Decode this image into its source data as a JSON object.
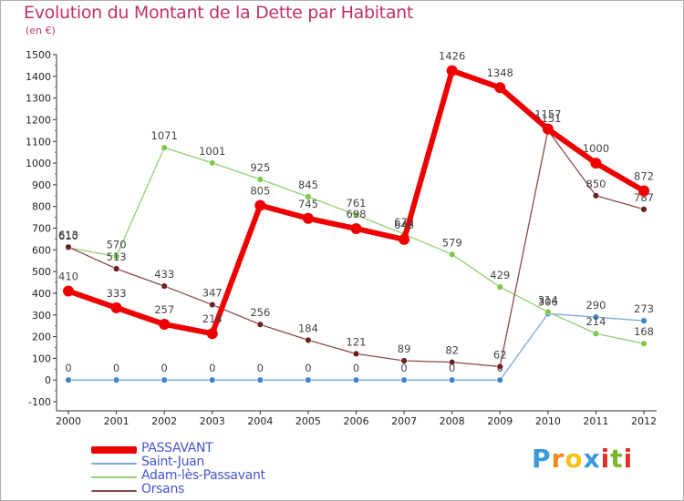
{
  "header": {
    "title": "Evolution du Montant de la Dette par Habitant",
    "subtitle": "(en €)"
  },
  "logo": {
    "text": "Proxiti",
    "colors": [
      "#3a9ad9",
      "#f08a1c",
      "#f3c318",
      "#3a9ad9",
      "#e0302a",
      "#78b82a",
      "#e0302a"
    ]
  },
  "chart_data": {
    "type": "line",
    "title": "Evolution du Montant de la Dette par Habitant",
    "ylabel": "(en €)",
    "xlabel": "",
    "x": [
      "2000",
      "2001",
      "2002",
      "2003",
      "2004",
      "2005",
      "2006",
      "2007",
      "2008",
      "2009",
      "2010",
      "2011",
      "2012"
    ],
    "y_ticks": [
      "-100",
      "0",
      "100",
      "200",
      "300",
      "400",
      "500",
      "600",
      "700",
      "800",
      "900",
      "1000",
      "1100",
      "1200",
      "1300",
      "1400",
      "1500"
    ],
    "ylim": [
      -100,
      1500
    ],
    "grid": false,
    "legend_position": "bottom-left",
    "series": [
      {
        "name": "PASSAVANT",
        "color": "#ee0000",
        "marker": "#ee0000",
        "width": 6,
        "values": [
          410,
          333,
          257,
          214,
          805,
          745,
          698,
          648,
          1426,
          1348,
          1157,
          1000,
          872
        ],
        "labels": [
          "410",
          "333",
          "257",
          "214",
          "805",
          "745",
          "698",
          "648",
          "1426",
          "1348",
          "1157",
          "1000",
          "872"
        ]
      },
      {
        "name": "Saint-Juan",
        "color": "#7aa8d0",
        "marker": "#3f86c6",
        "width": 1.3,
        "values": [
          0,
          0,
          0,
          0,
          0,
          0,
          0,
          0,
          0,
          0,
          306,
          290,
          273
        ],
        "labels": [
          "0",
          "0",
          "0",
          "0",
          "0",
          "0",
          "0",
          "0",
          "0",
          "0",
          "306",
          "290",
          "273"
        ]
      },
      {
        "name": "Adam-lès-Passavant",
        "color": "#90d070",
        "marker": "#7cc84a",
        "width": 1.3,
        "values": [
          610,
          570,
          1071,
          1001,
          925,
          845,
          761,
          673,
          579,
          429,
          314,
          214,
          168
        ],
        "labels": [
          "610",
          "570",
          "1071",
          "1001",
          "925",
          "845",
          "761",
          "673",
          "579",
          "429",
          "314",
          "214",
          "168"
        ]
      },
      {
        "name": "Orsans",
        "color": "#8a4a4a",
        "marker": "#6b1f1f",
        "width": 1.3,
        "values": [
          613,
          513,
          433,
          347,
          256,
          184,
          121,
          89,
          82,
          62,
          1151,
          850,
          787
        ],
        "labels": [
          "613",
          "513",
          "433",
          "347",
          "256",
          "184",
          "121",
          "89",
          "82",
          "62",
          "1151",
          "850",
          "787"
        ]
      }
    ]
  }
}
